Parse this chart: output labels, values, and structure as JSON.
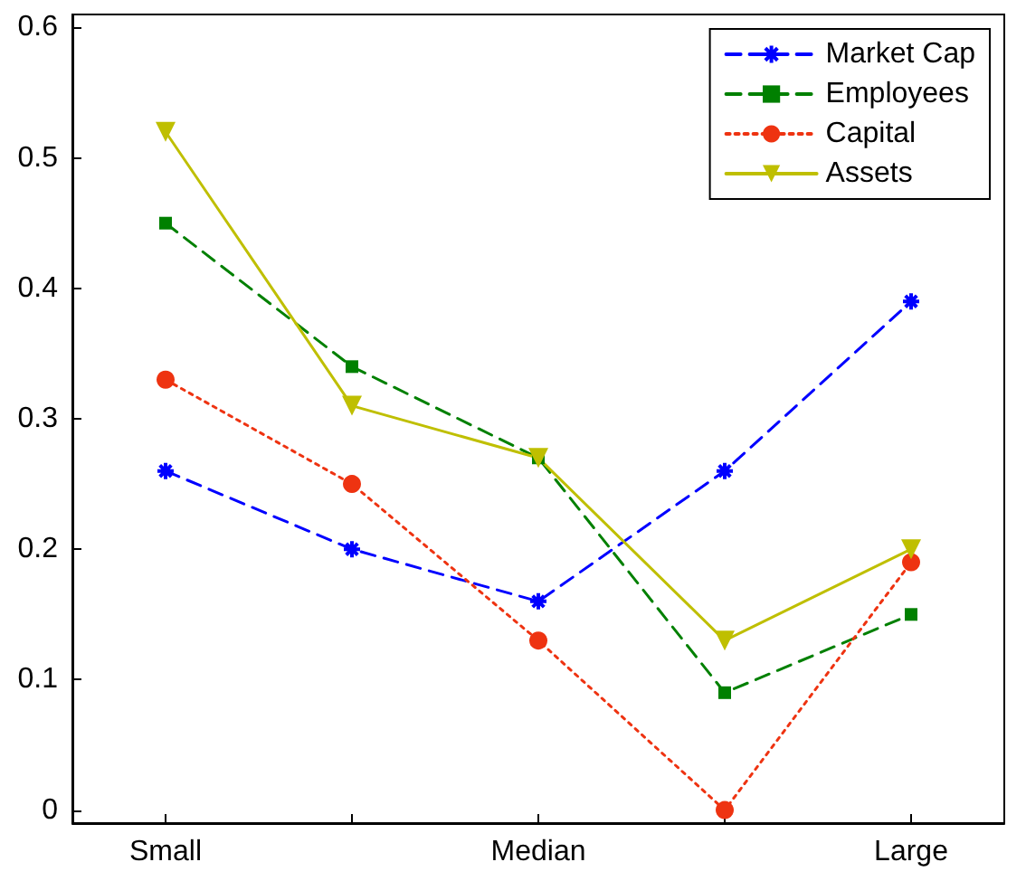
{
  "chart_data": {
    "type": "line",
    "categories": [
      "Small",
      null,
      "Median",
      null,
      "Large"
    ],
    "ylim": [
      -0.01,
      0.61
    ],
    "yticks": [
      0,
      0.1,
      0.2,
      0.3,
      0.4,
      0.5,
      0.6
    ],
    "grid": false,
    "legend": "top right",
    "series": [
      {
        "name": "Market Cap",
        "color": "#0000ff",
        "marker": "cross",
        "line_style": "dashed",
        "values": [
          0.26,
          0.2,
          0.16,
          0.26,
          0.39
        ]
      },
      {
        "name": "Employees",
        "color": "#008000",
        "marker": "square",
        "line_style": "dashed",
        "values": [
          0.45,
          0.34,
          0.27,
          0.09,
          0.15
        ]
      },
      {
        "name": "Capital",
        "color": "#ee3311",
        "marker": "circle",
        "line_style": "dotted",
        "values": [
          0.33,
          0.25,
          0.13,
          0,
          0.19
        ]
      },
      {
        "name": "Assets",
        "color": "#bfbf00",
        "marker": "triangle",
        "line_style": "solid",
        "values": [
          0.52,
          0.31,
          0.27,
          0.13,
          0.2
        ]
      }
    ]
  }
}
